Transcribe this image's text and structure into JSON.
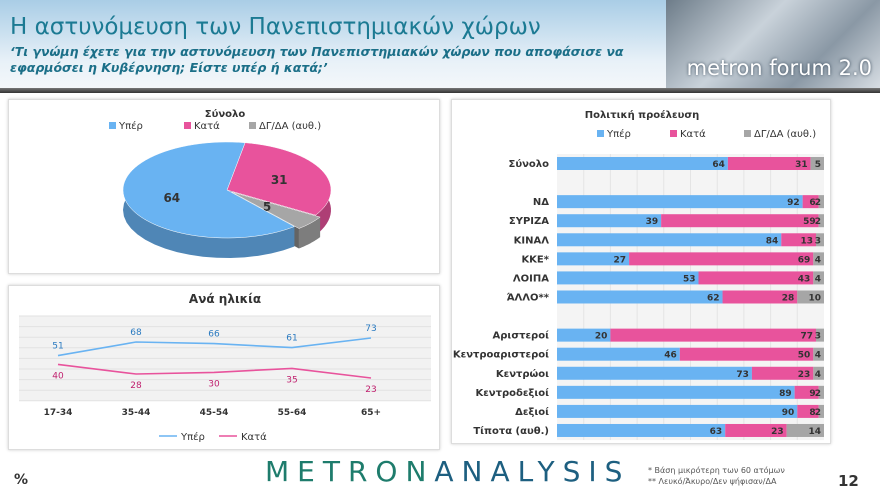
{
  "header": {
    "title": "Η αστυνόμευση των Πανεπιστημιακών χώρων",
    "subtitle": "‘Τι γνώμη έχετε για την αστυνόμευση των Πανεπιστημιακών χώρων που αποφάσισε να εφαρμόσει η Κυβέρνηση; Είστε υπέρ ή κατά;’",
    "logo": "metron forum 2.0"
  },
  "colors": {
    "yes": "#69b3f2",
    "no": "#e8539c",
    "dk": "#a6a6a6"
  },
  "chart_data": [
    {
      "type": "pie",
      "title": "Σύνολο",
      "legend": [
        "Υπέρ",
        "Κατά",
        "ΔΓ/ΔΑ (αυθ.)"
      ],
      "legend_position": "top",
      "categories": [
        "Υπέρ",
        "Κατά",
        "ΔΓ/ΔΑ (αυθ.)"
      ],
      "values": [
        64,
        31,
        5
      ]
    },
    {
      "type": "line",
      "title": "Ανά ηλικία",
      "categories": [
        "17-34",
        "35-44",
        "45-54",
        "55-64",
        "65+"
      ],
      "series": [
        {
          "name": "Υπέρ",
          "values": [
            51,
            68,
            66,
            61,
            73
          ]
        },
        {
          "name": "Κατά",
          "values": [
            40,
            28,
            30,
            35,
            23
          ]
        }
      ],
      "legend_position": "bottom",
      "grid": true
    },
    {
      "type": "bar",
      "stacked": true,
      "orientation": "horizontal",
      "title": "Πολιτική προέλευση",
      "legend_position": "top",
      "xlim": [
        0,
        100
      ],
      "categories": [
        "Σύνολο",
        "",
        "ΝΔ",
        "ΣΥΡΙΖΑ",
        "ΚΙΝΑΛ",
        "ΚΚΕ*",
        "ΛΟΙΠΑ",
        "ΆΛΛΟ**",
        "",
        "Αριστεροί",
        "Κεντροαριστεροί",
        "Κεντρώοι",
        "Κεντροδεξιοί",
        "Δεξιοί",
        "Τίποτα (αυθ.)"
      ],
      "series": [
        {
          "name": "Υπέρ",
          "values": [
            64,
            null,
            92,
            39,
            84,
            27,
            53,
            62,
            null,
            20,
            46,
            73,
            89,
            90,
            63
          ]
        },
        {
          "name": "Κατά",
          "values": [
            31,
            null,
            6,
            59,
            13,
            69,
            43,
            28,
            null,
            77,
            50,
            23,
            9,
            8,
            23
          ]
        },
        {
          "name": "ΔΓ/ΔΑ (αυθ.)",
          "values": [
            5,
            null,
            2,
            2,
            3,
            4,
            4,
            10,
            null,
            3,
            4,
            4,
            2,
            2,
            14
          ]
        }
      ]
    }
  ],
  "footer": {
    "brand_a": "METRON",
    "brand_b": "ANALYSIS",
    "percent": "%",
    "note1": "*  Βάση μικρότερη των 60 ατόμων",
    "note2": "** Λευκό/Άκυρο/Δεν ψήφισαν/ΔΑ",
    "page": "12"
  }
}
